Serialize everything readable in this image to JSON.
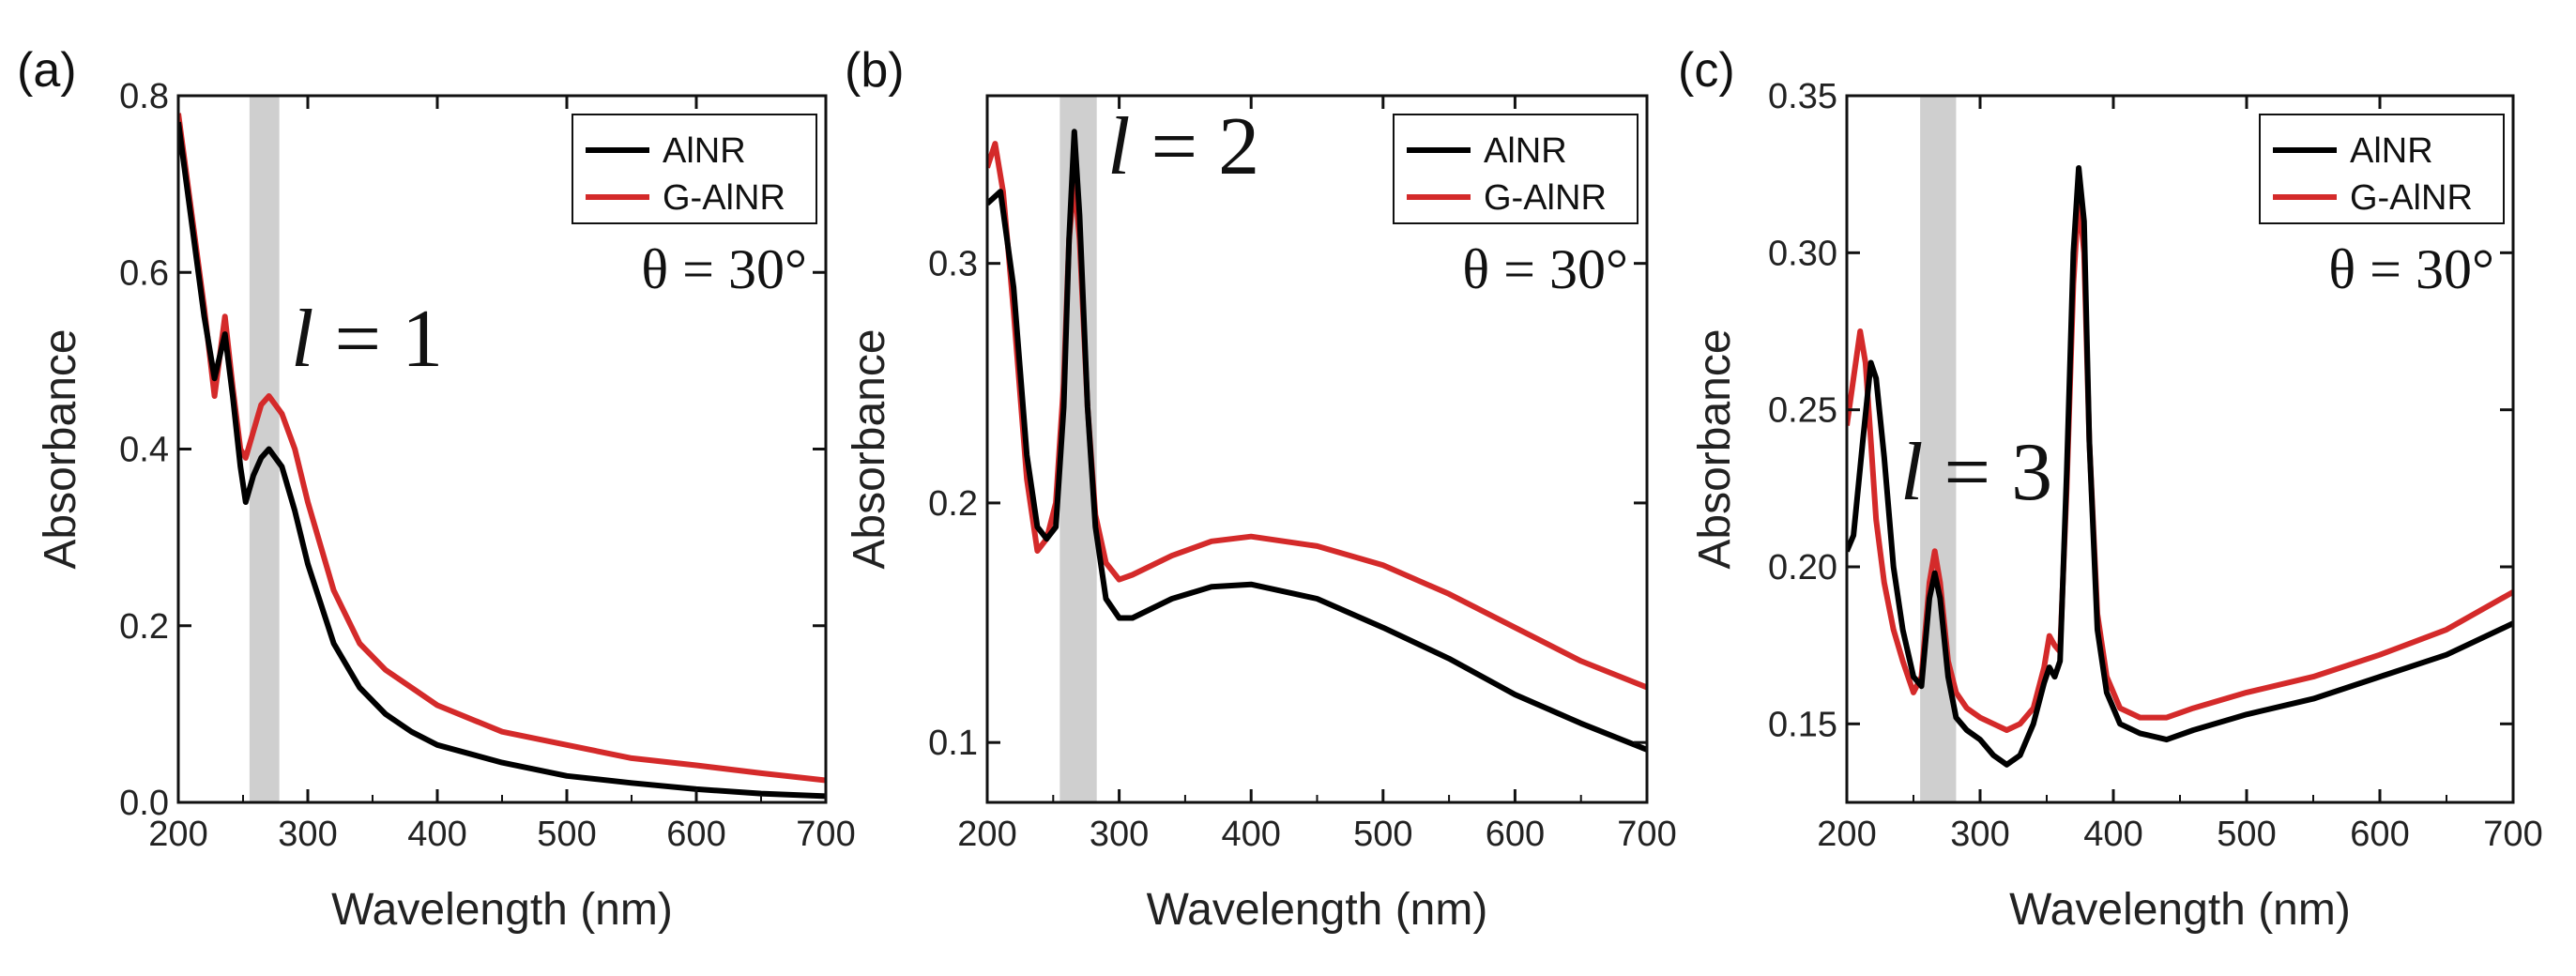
{
  "colors": {
    "AlNR": "#000000",
    "G-AlNR": "#d42a2a",
    "band": "#cfcfcf"
  },
  "chart_data": [
    {
      "panel": "(a)",
      "type": "line",
      "xlabel": "Wavelength (nm)",
      "ylabel": "Absorbance",
      "xlim": [
        200,
        700
      ],
      "ylim": [
        0.0,
        0.8
      ],
      "xticks": [
        "200",
        "300",
        "400",
        "500",
        "600",
        "700"
      ],
      "yticks": [
        "0.0",
        "0.2",
        "0.4",
        "0.6",
        "0.8"
      ],
      "band": [
        255,
        278
      ],
      "legend": [
        "AlNR",
        "G-AlNR"
      ],
      "theta_label": "θ = 30°",
      "order_label": {
        "var": "l",
        "eq": " = 1"
      },
      "series": [
        {
          "name": "AlNR",
          "x": [
            200,
            210,
            220,
            228,
            236,
            242,
            248,
            252,
            258,
            264,
            270,
            280,
            290,
            300,
            320,
            340,
            360,
            380,
            400,
            450,
            500,
            550,
            600,
            650,
            700
          ],
          "y": [
            0.77,
            0.66,
            0.55,
            0.48,
            0.53,
            0.46,
            0.38,
            0.34,
            0.37,
            0.39,
            0.4,
            0.38,
            0.33,
            0.27,
            0.18,
            0.13,
            0.1,
            0.08,
            0.065,
            0.045,
            0.03,
            0.022,
            0.015,
            0.01,
            0.007
          ]
        },
        {
          "name": "G-AlNR",
          "x": [
            200,
            210,
            220,
            228,
            236,
            242,
            248,
            252,
            258,
            264,
            270,
            280,
            290,
            300,
            320,
            340,
            360,
            380,
            400,
            450,
            500,
            550,
            600,
            650,
            700
          ],
          "y": [
            0.78,
            0.67,
            0.56,
            0.46,
            0.55,
            0.47,
            0.4,
            0.39,
            0.42,
            0.45,
            0.46,
            0.44,
            0.4,
            0.34,
            0.24,
            0.18,
            0.15,
            0.13,
            0.11,
            0.08,
            0.065,
            0.05,
            0.042,
            0.033,
            0.025
          ]
        }
      ]
    },
    {
      "panel": "(b)",
      "type": "line",
      "xlabel": "Wavelength (nm)",
      "ylabel": "Absorbance",
      "xlim": [
        200,
        700
      ],
      "ylim": [
        0.075,
        0.37
      ],
      "xticks": [
        "200",
        "300",
        "400",
        "500",
        "600",
        "700"
      ],
      "yticks": [
        "0.1",
        "0.2",
        "0.3"
      ],
      "ytick_values": [
        0.1,
        0.2,
        0.3
      ],
      "band": [
        255,
        283
      ],
      "legend": [
        "AlNR",
        "G-AlNR"
      ],
      "theta_label": "θ = 30°",
      "order_label": {
        "var": "l",
        "eq": " = 2"
      },
      "series": [
        {
          "name": "AlNR",
          "x": [
            200,
            210,
            220,
            230,
            238,
            245,
            252,
            258,
            262,
            266,
            270,
            276,
            282,
            290,
            300,
            310,
            340,
            370,
            400,
            450,
            500,
            550,
            600,
            650,
            700
          ],
          "y": [
            0.325,
            0.33,
            0.29,
            0.22,
            0.19,
            0.185,
            0.19,
            0.24,
            0.31,
            0.355,
            0.32,
            0.24,
            0.19,
            0.16,
            0.152,
            0.152,
            0.16,
            0.165,
            0.166,
            0.16,
            0.148,
            0.135,
            0.12,
            0.108,
            0.097
          ]
        },
        {
          "name": "G-AlNR",
          "x": [
            200,
            206,
            212,
            220,
            230,
            238,
            245,
            252,
            258,
            262,
            266,
            270,
            276,
            282,
            290,
            300,
            310,
            340,
            370,
            400,
            450,
            500,
            550,
            600,
            650,
            700
          ],
          "y": [
            0.34,
            0.35,
            0.33,
            0.28,
            0.21,
            0.18,
            0.185,
            0.2,
            0.25,
            0.31,
            0.335,
            0.31,
            0.24,
            0.195,
            0.175,
            0.168,
            0.17,
            0.178,
            0.184,
            0.186,
            0.182,
            0.174,
            0.162,
            0.148,
            0.134,
            0.123
          ]
        }
      ]
    },
    {
      "panel": "(c)",
      "type": "line",
      "xlabel": "Wavelength (nm)",
      "ylabel": "Absorbance",
      "xlim": [
        200,
        700
      ],
      "ylim": [
        0.125,
        0.35
      ],
      "xticks": [
        "200",
        "300",
        "400",
        "500",
        "600",
        "700"
      ],
      "yticks": [
        "0.15",
        "0.20",
        "0.25",
        "0.30",
        "0.35"
      ],
      "ytick_values": [
        0.15,
        0.2,
        0.25,
        0.3,
        0.35
      ],
      "band": [
        255,
        282
      ],
      "legend": [
        "AlNR",
        "G-AlNR"
      ],
      "theta_label": "θ = 30°",
      "order_label": {
        "var": "l",
        "eq": " = 3"
      },
      "series": [
        {
          "name": "AlNR",
          "x": [
            200,
            205,
            212,
            218,
            222,
            228,
            235,
            242,
            250,
            256,
            262,
            266,
            270,
            276,
            282,
            290,
            300,
            310,
            320,
            330,
            340,
            348,
            352,
            356,
            360,
            365,
            370,
            374,
            378,
            382,
            388,
            395,
            405,
            420,
            440,
            460,
            500,
            550,
            600,
            650,
            700
          ],
          "y": [
            0.205,
            0.21,
            0.24,
            0.265,
            0.26,
            0.235,
            0.2,
            0.18,
            0.165,
            0.162,
            0.19,
            0.198,
            0.19,
            0.165,
            0.152,
            0.148,
            0.145,
            0.14,
            0.137,
            0.14,
            0.15,
            0.163,
            0.168,
            0.165,
            0.17,
            0.23,
            0.3,
            0.327,
            0.31,
            0.24,
            0.18,
            0.16,
            0.15,
            0.147,
            0.145,
            0.148,
            0.153,
            0.158,
            0.165,
            0.172,
            0.182
          ]
        },
        {
          "name": "G-AlNR",
          "x": [
            200,
            205,
            210,
            214,
            218,
            222,
            228,
            235,
            242,
            250,
            256,
            262,
            266,
            270,
            276,
            282,
            290,
            300,
            310,
            320,
            330,
            340,
            348,
            352,
            356,
            360,
            365,
            370,
            374,
            378,
            382,
            388,
            395,
            405,
            420,
            440,
            460,
            500,
            550,
            600,
            650,
            700
          ],
          "y": [
            0.245,
            0.26,
            0.275,
            0.265,
            0.24,
            0.215,
            0.195,
            0.18,
            0.17,
            0.16,
            0.165,
            0.195,
            0.205,
            0.195,
            0.17,
            0.16,
            0.155,
            0.152,
            0.15,
            0.148,
            0.15,
            0.155,
            0.168,
            0.178,
            0.175,
            0.173,
            0.225,
            0.29,
            0.318,
            0.3,
            0.24,
            0.185,
            0.165,
            0.155,
            0.152,
            0.152,
            0.155,
            0.16,
            0.165,
            0.172,
            0.18,
            0.192
          ]
        }
      ]
    }
  ]
}
